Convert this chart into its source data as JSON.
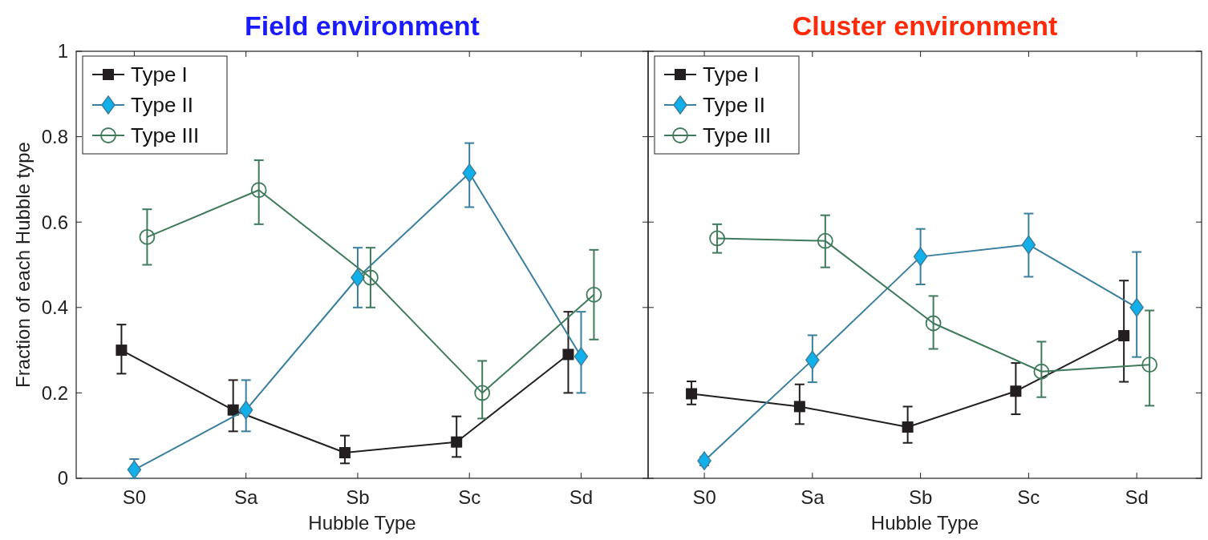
{
  "chart_data": [
    {
      "type": "line",
      "title": "Field environment",
      "xlabel": "Hubble Type",
      "ylabel": "Fraction of each Hubble type",
      "categories": [
        "S0",
        "Sa",
        "Sb",
        "Sc",
        "Sd"
      ],
      "ylim": [
        0,
        1
      ],
      "yticks": [
        0,
        0.2,
        0.4,
        0.6,
        0.8,
        1
      ],
      "grid": false,
      "legend": "top left",
      "series": [
        {
          "name": "Type I",
          "color": "#231f20",
          "marker": "square",
          "values": [
            0.3,
            0.16,
            0.06,
            0.085,
            0.29
          ],
          "errors": [
            [
              0.245,
              0.36
            ],
            [
              0.11,
              0.23
            ],
            [
              0.035,
              0.1
            ],
            [
              0.05,
              0.145
            ],
            [
              0.2,
              0.39
            ]
          ]
        },
        {
          "name": "Type II",
          "color": "#3a7f9e",
          "marker": "diamond",
          "values": [
            0.02,
            0.16,
            0.47,
            0.715,
            0.285
          ],
          "errors": [
            [
              0.0,
              0.045
            ],
            [
              0.11,
              0.23
            ],
            [
              0.4,
              0.54
            ],
            [
              0.635,
              0.785
            ],
            [
              0.2,
              0.39
            ]
          ]
        },
        {
          "name": "Type III",
          "color": "#3f7a5a",
          "marker": "circle",
          "values": [
            0.565,
            0.675,
            0.47,
            0.2,
            0.43
          ],
          "errors": [
            [
              0.5,
              0.63
            ],
            [
              0.595,
              0.745
            ],
            [
              0.4,
              0.54
            ],
            [
              0.14,
              0.275
            ],
            [
              0.325,
              0.535
            ]
          ]
        }
      ]
    },
    {
      "type": "line",
      "title": "Cluster environment",
      "xlabel": "Hubble Type",
      "categories": [
        "S0",
        "Sa",
        "Sb",
        "Sc",
        "Sd"
      ],
      "ylim": [
        0,
        1
      ],
      "yticks": [
        0,
        0.2,
        0.4,
        0.6,
        0.8,
        1
      ],
      "tick_labels": "x",
      "grid": false,
      "legend": "top left",
      "series": [
        {
          "name": "Type I",
          "color": "#231f20",
          "marker": "square",
          "values": [
            0.198,
            0.168,
            0.12,
            0.204,
            0.334
          ],
          "errors": [
            [
              0.173,
              0.227
            ],
            [
              0.127,
              0.22
            ],
            [
              0.083,
              0.168
            ],
            [
              0.15,
              0.27
            ],
            [
              0.226,
              0.463
            ]
          ]
        },
        {
          "name": "Type II",
          "color": "#3a7f9e",
          "marker": "diamond",
          "values": [
            0.041,
            0.277,
            0.519,
            0.547,
            0.4
          ],
          "errors": [
            [
              0.03,
              0.05
            ],
            [
              0.225,
              0.335
            ],
            [
              0.454,
              0.584
            ],
            [
              0.472,
              0.62
            ],
            [
              0.284,
              0.53
            ]
          ]
        },
        {
          "name": "Type III",
          "color": "#3f7a5a",
          "marker": "circle",
          "values": [
            0.562,
            0.556,
            0.363,
            0.25,
            0.266
          ],
          "errors": [
            [
              0.528,
              0.595
            ],
            [
              0.494,
              0.616
            ],
            [
              0.303,
              0.427
            ],
            [
              0.19,
              0.32
            ],
            [
              0.17,
              0.393
            ]
          ]
        }
      ]
    }
  ]
}
